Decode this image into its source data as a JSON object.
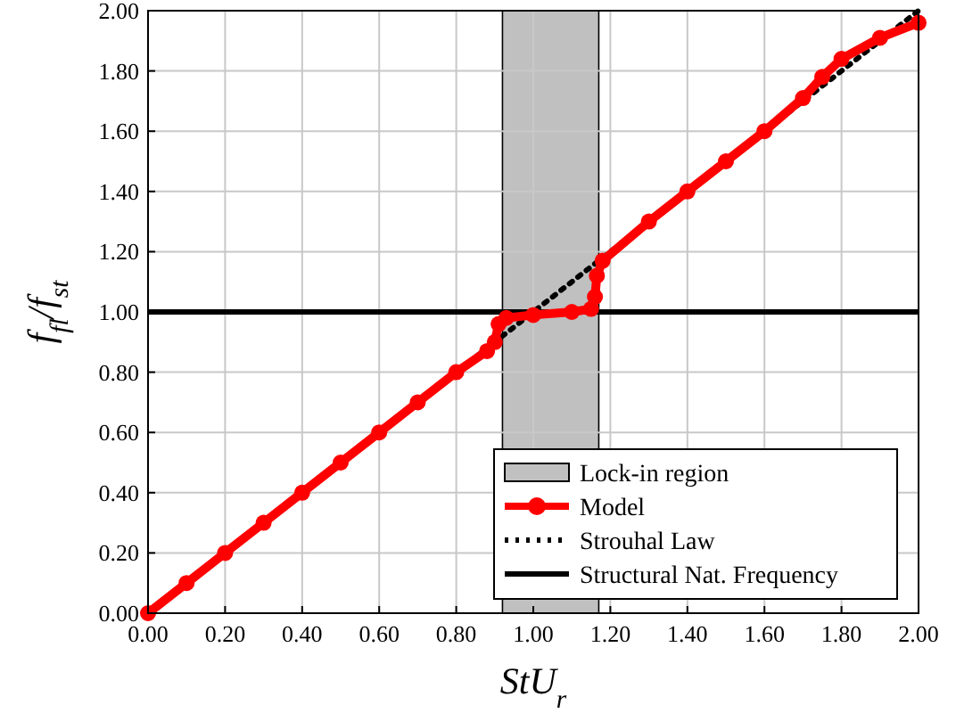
{
  "chart_data": {
    "type": "line",
    "xlabel": "StU$_{r}$",
    "ylabel": "f$_{fl}$/f$_{st}$",
    "xlim": [
      0,
      2
    ],
    "ylim": [
      0,
      2
    ],
    "xticks": [
      {
        "value": 0,
        "label": "0.00"
      },
      {
        "value": 0.2,
        "label": "0.20"
      },
      {
        "value": 0.4,
        "label": "0.40"
      },
      {
        "value": 0.6,
        "label": "0.60"
      },
      {
        "value": 0.8,
        "label": "0.80"
      },
      {
        "value": 1,
        "label": "1.00"
      },
      {
        "value": 1.2,
        "label": "1.20"
      },
      {
        "value": 1.4,
        "label": "1.40"
      },
      {
        "value": 1.6,
        "label": "1.60"
      },
      {
        "value": 1.8,
        "label": "1.80"
      },
      {
        "value": 2,
        "label": "2.00"
      }
    ],
    "yticks": [
      {
        "value": 0,
        "label": "0.00"
      },
      {
        "value": 0.2,
        "label": "0.20"
      },
      {
        "value": 0.4,
        "label": "0.40"
      },
      {
        "value": 0.6,
        "label": "0.60"
      },
      {
        "value": 0.8,
        "label": "0.80"
      },
      {
        "value": 1,
        "label": "1.00"
      },
      {
        "value": 1.2,
        "label": "1.20"
      },
      {
        "value": 1.4,
        "label": "1.40"
      },
      {
        "value": 1.6,
        "label": "1.60"
      },
      {
        "value": 1.8,
        "label": "1.80"
      },
      {
        "value": 2,
        "label": "2.00"
      }
    ],
    "grid": true,
    "legend": "bottom right",
    "bands": [
      {
        "axis": "x",
        "from": 0.92,
        "to": 1.17,
        "label": "Lock-in region",
        "color": "#c0c0c0"
      }
    ],
    "series": [
      {
        "name": "Model",
        "color": "#ff0000",
        "marker": "circle",
        "line_style": "solid",
        "x": [
          0,
          0.1,
          0.2,
          0.3,
          0.4,
          0.5,
          0.6,
          0.7,
          0.8,
          0.88,
          0.9,
          0.91,
          0.93,
          1.0,
          1.1,
          1.15,
          1.16,
          1.165,
          1.18,
          1.3,
          1.4,
          1.5,
          1.6,
          1.7,
          1.75,
          1.8,
          1.9,
          2.0
        ],
        "values": [
          0,
          0.1,
          0.2,
          0.3,
          0.4,
          0.5,
          0.6,
          0.7,
          0.8,
          0.87,
          0.9,
          0.96,
          0.98,
          0.99,
          1.0,
          1.01,
          1.05,
          1.12,
          1.17,
          1.3,
          1.4,
          1.5,
          1.6,
          1.71,
          1.78,
          1.84,
          1.91,
          1.96
        ]
      },
      {
        "name": "Strouhal Law",
        "color": "#000000",
        "marker": "none",
        "line_style": "dotted",
        "x": [
          0,
          2
        ],
        "values": [
          0,
          2
        ]
      },
      {
        "name": "Structural Nat. Frequency",
        "color": "#000000",
        "marker": "none",
        "line_style": "solid",
        "x": [
          0,
          2
        ],
        "values": [
          1,
          1
        ]
      }
    ]
  }
}
